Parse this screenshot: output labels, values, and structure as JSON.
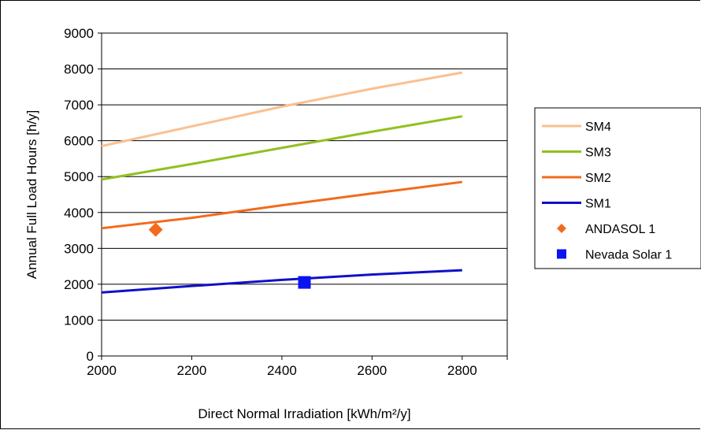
{
  "chart_data": {
    "type": "line",
    "title": "",
    "xlabel": "Direct Normal Irradiation [kWh/m²/y]",
    "ylabel": "Annual Full Load Hours [h/y]",
    "xlim": [
      2000,
      2900
    ],
    "ylim": [
      0,
      9000
    ],
    "x_ticks": [
      2000,
      2200,
      2400,
      2600,
      2800
    ],
    "y_ticks": [
      0,
      1000,
      2000,
      3000,
      4000,
      5000,
      6000,
      7000,
      8000,
      9000
    ],
    "grid": "horizontal",
    "legend_position": "right",
    "series": [
      {
        "name": "SM4",
        "kind": "line",
        "color": "#FAC090",
        "x": [
          2000,
          2200,
          2400,
          2600,
          2800
        ],
        "y": [
          5850,
          6400,
          6950,
          7450,
          7900
        ]
      },
      {
        "name": "SM3",
        "kind": "line",
        "color": "#92C020",
        "x": [
          2000,
          2200,
          2400,
          2600,
          2800
        ],
        "y": [
          4920,
          5350,
          5800,
          6250,
          6680
        ]
      },
      {
        "name": "SM2",
        "kind": "line",
        "color": "#F26B1D",
        "x": [
          2000,
          2200,
          2400,
          2600,
          2800
        ],
        "y": [
          3560,
          3850,
          4200,
          4530,
          4850
        ]
      },
      {
        "name": "SM1",
        "kind": "line",
        "color": "#1010C8",
        "x": [
          2000,
          2200,
          2400,
          2600,
          2800
        ],
        "y": [
          1770,
          1950,
          2120,
          2270,
          2390
        ]
      },
      {
        "name": "ANDASOL 1",
        "kind": "marker",
        "marker": "diamond",
        "color": "#F26B1D",
        "x": [
          2120
        ],
        "y": [
          3520
        ]
      },
      {
        "name": "Nevada Solar 1",
        "kind": "marker",
        "marker": "square",
        "color": "#0A14F0",
        "x": [
          2450
        ],
        "y": [
          2050
        ]
      }
    ]
  }
}
